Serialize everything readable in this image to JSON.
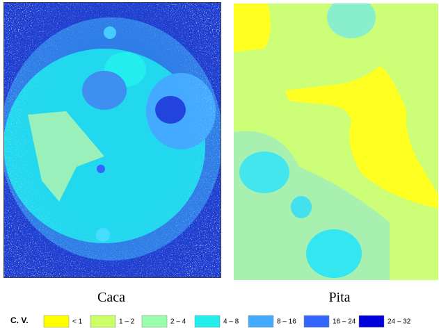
{
  "panels": [
    {
      "label": "Caca"
    },
    {
      "label": "Pita"
    }
  ],
  "legend": {
    "title": "C. V.",
    "items": [
      {
        "label": "< 1",
        "color": "#ffff00"
      },
      {
        "label": "1 – 2",
        "color": "#ccff66"
      },
      {
        "label": "2 – 4",
        "color": "#99ffaa"
      },
      {
        "label": "4 – 8",
        "color": "#22eeee"
      },
      {
        "label": "8 – 16",
        "color": "#44aaff"
      },
      {
        "label": "16 – 24",
        "color": "#3366ff"
      },
      {
        "label": "24 – 32",
        "color": "#0000dd"
      }
    ]
  }
}
